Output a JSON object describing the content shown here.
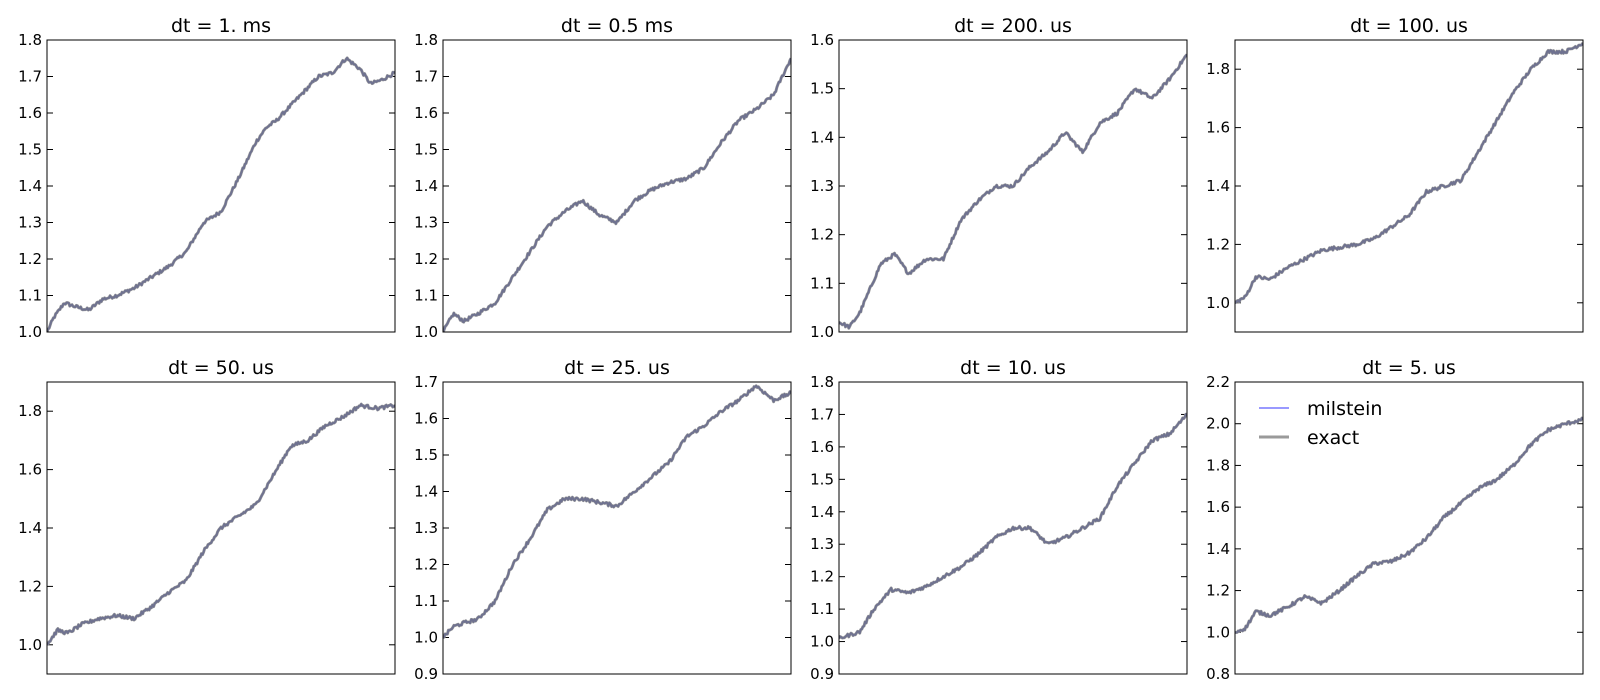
{
  "chart_data": [
    {
      "type": "line",
      "title": "dt = 1. ms",
      "ylim": [
        1.0,
        1.8
      ],
      "yticks": [
        "1.0",
        "1.1",
        "1.2",
        "1.3",
        "1.4",
        "1.5",
        "1.6",
        "1.7",
        "1.8"
      ],
      "x": [
        0,
        0.02,
        0.05,
        0.08,
        0.12,
        0.16,
        0.2,
        0.25,
        0.3,
        0.35,
        0.4,
        0.45,
        0.5,
        0.55,
        0.6,
        0.63,
        0.66,
        0.7,
        0.74,
        0.78,
        0.82,
        0.86,
        0.9,
        0.93,
        0.96,
        1.0
      ],
      "series": [
        {
          "values": [
            1.0,
            1.04,
            1.08,
            1.07,
            1.06,
            1.09,
            1.1,
            1.12,
            1.15,
            1.18,
            1.22,
            1.3,
            1.33,
            1.42,
            1.52,
            1.56,
            1.58,
            1.62,
            1.66,
            1.7,
            1.71,
            1.75,
            1.72,
            1.68,
            1.69,
            1.71
          ]
        }
      ]
    },
    {
      "type": "line",
      "title": "dt = 0.5 ms",
      "ylim": [
        1.0,
        1.8
      ],
      "yticks": [
        "1.0",
        "1.1",
        "1.2",
        "1.3",
        "1.4",
        "1.5",
        "1.6",
        "1.7",
        "1.8"
      ],
      "x": [
        0,
        0.03,
        0.06,
        0.1,
        0.15,
        0.2,
        0.25,
        0.3,
        0.35,
        0.4,
        0.45,
        0.5,
        0.55,
        0.6,
        0.65,
        0.7,
        0.75,
        0.8,
        0.85,
        0.9,
        0.95,
        1.0
      ],
      "series": [
        {
          "values": [
            1.0,
            1.05,
            1.03,
            1.05,
            1.08,
            1.15,
            1.22,
            1.29,
            1.33,
            1.36,
            1.32,
            1.3,
            1.36,
            1.39,
            1.41,
            1.42,
            1.45,
            1.52,
            1.58,
            1.61,
            1.65,
            1.75
          ]
        }
      ]
    },
    {
      "type": "line",
      "title": "dt = 200. us",
      "ylim": [
        1.0,
        1.6
      ],
      "yticks": [
        "1.0",
        "1.1",
        "1.2",
        "1.3",
        "1.4",
        "1.5",
        "1.6"
      ],
      "x": [
        0,
        0.03,
        0.06,
        0.09,
        0.12,
        0.16,
        0.2,
        0.25,
        0.3,
        0.35,
        0.4,
        0.45,
        0.5,
        0.55,
        0.6,
        0.65,
        0.7,
        0.75,
        0.8,
        0.85,
        0.9,
        0.95,
        1.0
      ],
      "series": [
        {
          "values": [
            1.02,
            1.01,
            1.04,
            1.09,
            1.14,
            1.16,
            1.12,
            1.15,
            1.15,
            1.23,
            1.27,
            1.3,
            1.3,
            1.34,
            1.37,
            1.41,
            1.37,
            1.43,
            1.45,
            1.5,
            1.48,
            1.52,
            1.57
          ]
        }
      ]
    },
    {
      "type": "line",
      "title": "dt = 100. us",
      "ylim": [
        0.9,
        1.9
      ],
      "yticks": [
        "1.0",
        "1.2",
        "1.4",
        "1.6",
        "1.8"
      ],
      "x": [
        0,
        0.03,
        0.06,
        0.1,
        0.15,
        0.2,
        0.25,
        0.3,
        0.35,
        0.4,
        0.45,
        0.5,
        0.55,
        0.6,
        0.65,
        0.7,
        0.75,
        0.8,
        0.85,
        0.9,
        0.95,
        1.0
      ],
      "series": [
        {
          "values": [
            1.0,
            1.02,
            1.09,
            1.08,
            1.12,
            1.15,
            1.18,
            1.19,
            1.2,
            1.22,
            1.26,
            1.3,
            1.38,
            1.4,
            1.42,
            1.52,
            1.62,
            1.72,
            1.8,
            1.86,
            1.86,
            1.89
          ]
        }
      ]
    },
    {
      "type": "line",
      "title": "dt = 50. us",
      "ylim": [
        0.9,
        1.9
      ],
      "yticks": [
        "1.0",
        "1.2",
        "1.4",
        "1.6",
        "1.8"
      ],
      "x": [
        0,
        0.03,
        0.06,
        0.1,
        0.15,
        0.2,
        0.25,
        0.3,
        0.35,
        0.4,
        0.45,
        0.5,
        0.55,
        0.6,
        0.65,
        0.7,
        0.75,
        0.8,
        0.85,
        0.9,
        0.95,
        1.0
      ],
      "series": [
        {
          "values": [
            1.0,
            1.05,
            1.04,
            1.07,
            1.09,
            1.1,
            1.09,
            1.13,
            1.18,
            1.22,
            1.32,
            1.4,
            1.44,
            1.48,
            1.58,
            1.68,
            1.7,
            1.75,
            1.78,
            1.82,
            1.81,
            1.82
          ]
        }
      ]
    },
    {
      "type": "line",
      "title": "dt = 25. us",
      "ylim": [
        0.9,
        1.7
      ],
      "yticks": [
        "0.9",
        "1.0",
        "1.1",
        "1.2",
        "1.3",
        "1.4",
        "1.5",
        "1.6",
        "1.7"
      ],
      "x": [
        0,
        0.03,
        0.06,
        0.1,
        0.15,
        0.2,
        0.25,
        0.3,
        0.35,
        0.4,
        0.45,
        0.5,
        0.55,
        0.6,
        0.65,
        0.7,
        0.75,
        0.8,
        0.85,
        0.9,
        0.95,
        1.0
      ],
      "series": [
        {
          "values": [
            1.0,
            1.03,
            1.04,
            1.05,
            1.1,
            1.2,
            1.27,
            1.35,
            1.38,
            1.38,
            1.37,
            1.36,
            1.4,
            1.44,
            1.48,
            1.55,
            1.58,
            1.62,
            1.65,
            1.69,
            1.65,
            1.67
          ]
        }
      ]
    },
    {
      "type": "line",
      "title": "dt = 10. us",
      "ylim": [
        0.9,
        1.8
      ],
      "yticks": [
        "0.9",
        "1.0",
        "1.1",
        "1.2",
        "1.3",
        "1.4",
        "1.5",
        "1.6",
        "1.7",
        "1.8"
      ],
      "x": [
        0,
        0.03,
        0.06,
        0.1,
        0.15,
        0.2,
        0.25,
        0.3,
        0.35,
        0.4,
        0.45,
        0.5,
        0.55,
        0.6,
        0.65,
        0.7,
        0.75,
        0.8,
        0.85,
        0.9,
        0.95,
        1.0
      ],
      "series": [
        {
          "values": [
            1.01,
            1.02,
            1.03,
            1.1,
            1.16,
            1.15,
            1.17,
            1.2,
            1.23,
            1.27,
            1.32,
            1.35,
            1.35,
            1.3,
            1.32,
            1.35,
            1.38,
            1.48,
            1.55,
            1.62,
            1.64,
            1.7
          ]
        }
      ]
    },
    {
      "type": "line",
      "title": "dt = 5. us",
      "ylim": [
        0.8,
        2.2
      ],
      "yticks": [
        "0.8",
        "1.0",
        "1.2",
        "1.4",
        "1.6",
        "1.8",
        "2.0",
        "2.2"
      ],
      "x": [
        0,
        0.03,
        0.06,
        0.1,
        0.15,
        0.2,
        0.25,
        0.3,
        0.35,
        0.4,
        0.45,
        0.5,
        0.55,
        0.6,
        0.65,
        0.7,
        0.75,
        0.8,
        0.85,
        0.9,
        0.95,
        1.0
      ],
      "series": [
        {
          "values": [
            1.0,
            1.02,
            1.1,
            1.08,
            1.12,
            1.17,
            1.14,
            1.2,
            1.27,
            1.33,
            1.34,
            1.38,
            1.45,
            1.55,
            1.62,
            1.69,
            1.73,
            1.8,
            1.9,
            1.97,
            2.0,
            2.02
          ]
        }
      ],
      "legend": {
        "placement": "top-left",
        "entries": [
          {
            "label": "milstein",
            "color": "#3333ff"
          },
          {
            "label": "exact",
            "color": "#9a9a9a"
          }
        ]
      }
    }
  ],
  "colors": {
    "trace": "#6f7290",
    "milstein": "#3333ff",
    "exact": "#9a9a9a"
  }
}
